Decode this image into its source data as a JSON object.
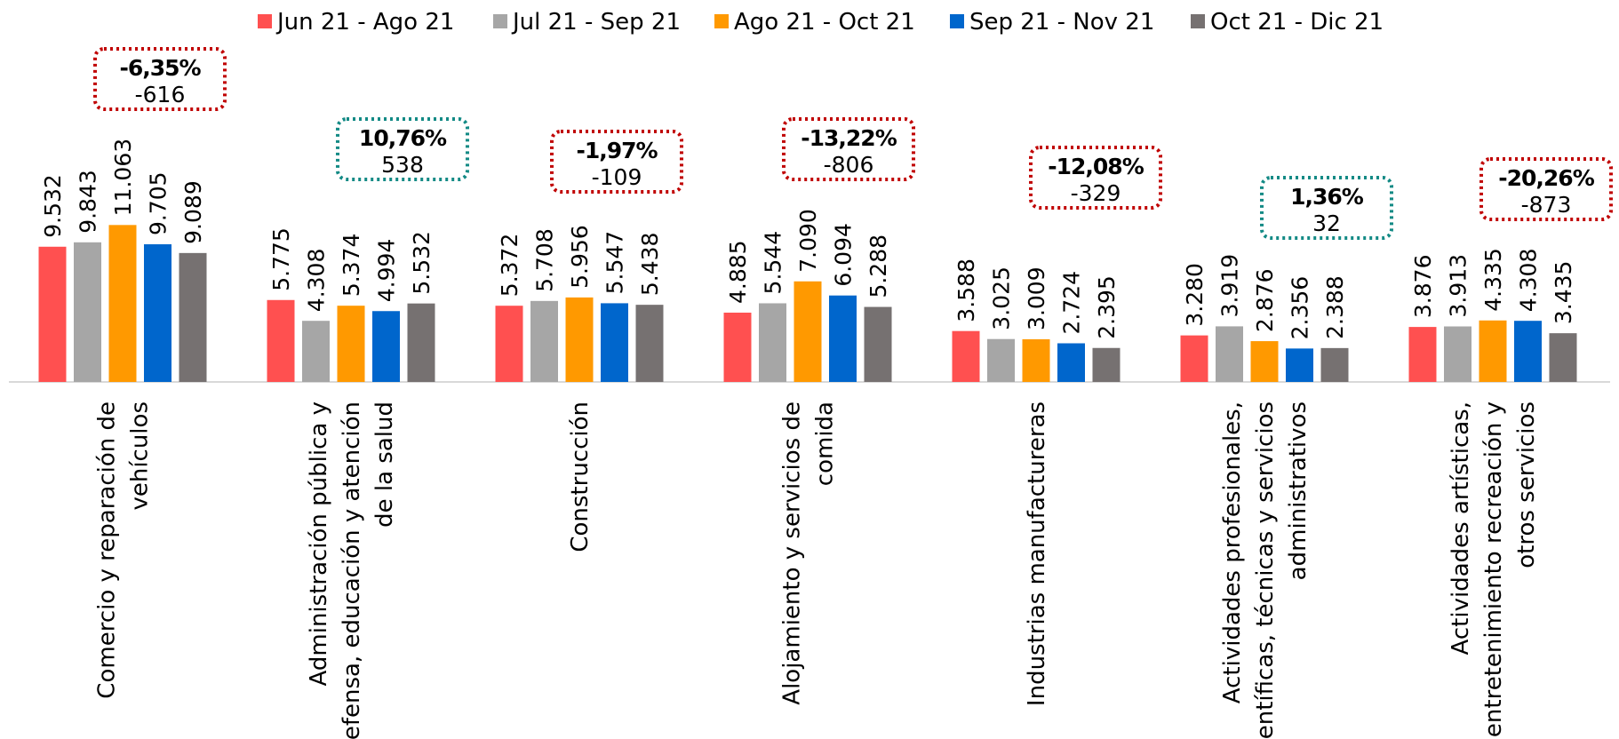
{
  "chart_data": {
    "type": "bar",
    "categories": [
      "Comercio y reparación de\nvehículos",
      "Administración pública y\ndefensa, educación y atención\nde la salud",
      "Construcción",
      "Alojamiento y servicios de\ncomida",
      "Industrias manufactureras",
      "Actividades profesionales,\ncientíficas, técnicas y servicios\nadministrativos",
      "Actividades artísticas,\nentretenimiento recreación y\notros servicios"
    ],
    "series": [
      {
        "name": "Jun 21 - Ago 21",
        "color": "#ff5050",
        "values": [
          9532,
          5775,
          5372,
          4885,
          3588,
          3280,
          3876
        ],
        "value_labels": [
          "9.532",
          "5.775",
          "5.372",
          "4.885",
          "3.588",
          "3.280",
          "3.876"
        ]
      },
      {
        "name": "Jul 21 - Sep 21",
        "color": "#a6a6a6",
        "values": [
          9843,
          4308,
          5708,
          5544,
          3025,
          3919,
          3913
        ],
        "value_labels": [
          "9.843",
          "4.308",
          "5.708",
          "5.544",
          "3.025",
          "3.919",
          "3.913"
        ]
      },
      {
        "name": "Ago 21 - Oct 21",
        "color": "#ff9900",
        "values": [
          11063,
          5374,
          5956,
          7090,
          3009,
          2876,
          4335
        ],
        "value_labels": [
          "11.063",
          "5.374",
          "5.956",
          "7.090",
          "3.009",
          "2.876",
          "4.335"
        ]
      },
      {
        "name": "Sep 21 - Nov 21",
        "color": "#0066cc",
        "values": [
          9705,
          4994,
          5547,
          6094,
          2724,
          2356,
          4308
        ],
        "value_labels": [
          "9.705",
          "4.994",
          "5.547",
          "6.094",
          "2.724",
          "2.356",
          "4.308"
        ]
      },
      {
        "name": "Oct 21 - Dic 21",
        "color": "#767171",
        "values": [
          9089,
          5532,
          5438,
          5288,
          2395,
          2388,
          3435
        ],
        "value_labels": [
          "9.089",
          "5.532",
          "5.438",
          "5.288",
          "2.395",
          "2.388",
          "3.435"
        ]
      }
    ],
    "annotations": [
      {
        "change": "-6,35%",
        "diff": "-616",
        "color": "#c00000"
      },
      {
        "change": "10,76%",
        "diff": "538",
        "color": "#138a85"
      },
      {
        "change": "-1,97%",
        "diff": "-109",
        "color": "#c00000"
      },
      {
        "change": "-13,22%",
        "diff": "-806",
        "color": "#c00000"
      },
      {
        "change": "-12,08%",
        "diff": "-329",
        "color": "#c00000"
      },
      {
        "change": "1,36%",
        "diff": "32",
        "color": "#138a85"
      },
      {
        "change": "-20,26%",
        "diff": "-873",
        "color": "#c00000"
      }
    ],
    "legend": "top"
  }
}
